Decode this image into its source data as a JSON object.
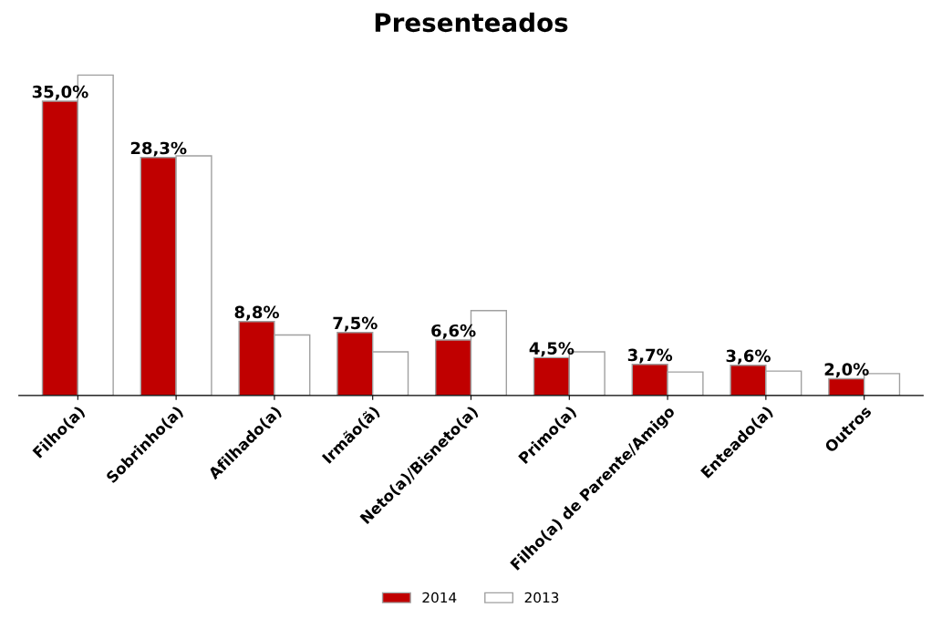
{
  "chart_data": {
    "type": "bar",
    "title": "Presenteados",
    "categories": [
      "Filho(a)",
      "Sobrinho(a)",
      "Afilhado(a)",
      "Irmão(ã)",
      "Neto(a)/Bisneto(a)",
      "Primo(a)",
      "Filho(a) de Parente/Amigo",
      "Enteado(a)",
      "Outros"
    ],
    "series": [
      {
        "name": "2014",
        "color": "#c00000",
        "values": [
          35.0,
          28.3,
          8.8,
          7.5,
          6.6,
          4.5,
          3.7,
          3.6,
          2.0
        ],
        "value_labels": [
          "35,0%",
          "28,3%",
          "8,8%",
          "7,5%",
          "6,6%",
          "4,5%",
          "3,7%",
          "3,6%",
          "2,0%"
        ]
      },
      {
        "name": "2013",
        "color": "#ffffff",
        "values": [
          38.1,
          28.5,
          7.2,
          5.2,
          10.1,
          5.2,
          2.8,
          2.9,
          2.6
        ]
      }
    ],
    "grid": false,
    "legend": "bottom"
  }
}
